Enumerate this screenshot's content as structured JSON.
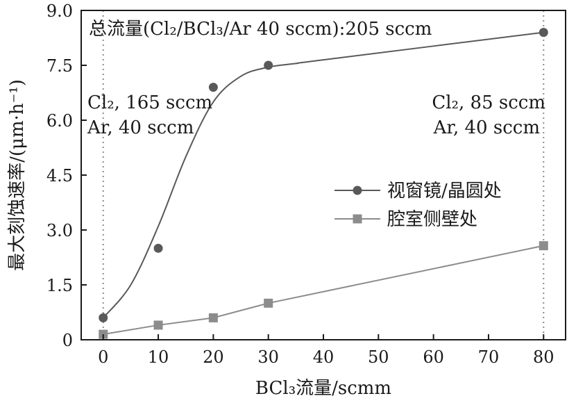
{
  "chart_data": {
    "type": "line",
    "title": "总流量(Cl₂/BCl₃/Ar 40 sccm):205 sccm",
    "xlabel": "BCl₃流量/scmm",
    "ylabel": "最大刻蚀速率/(μm·h⁻¹)",
    "xlim": [
      -4,
      84
    ],
    "ylim": [
      0,
      9.0
    ],
    "x_ticks": [
      0,
      10,
      20,
      30,
      40,
      50,
      60,
      70,
      80
    ],
    "y_ticks": [
      0,
      1.5,
      3.0,
      4.5,
      6.0,
      7.5,
      9.0
    ],
    "y_tick_labels": [
      "0",
      "1.5",
      "3.0",
      "4.5",
      "6.0",
      "7.5",
      "9.0"
    ],
    "grid": false,
    "legend_position": "center-right",
    "vlines": [
      0,
      80
    ],
    "annotations": [
      {
        "lines": [
          "Cl₂, 165 sccm",
          "Ar, 40 sccm"
        ],
        "position": "left"
      },
      {
        "lines": [
          "Cl₂, 85 sccm",
          "Ar, 40 sccm"
        ],
        "position": "right"
      }
    ],
    "series": [
      {
        "name": "视窗镜/晶圆处",
        "marker": "circle",
        "color": "#595959",
        "x": [
          0,
          10,
          20,
          30,
          80
        ],
        "y": [
          0.6,
          2.5,
          6.9,
          7.5,
          8.4
        ],
        "fit_curve": {
          "x": [
            0,
            5,
            10,
            15,
            20,
            25,
            30,
            35,
            40,
            80
          ],
          "y": [
            0.6,
            1.5,
            3.1,
            5.0,
            6.5,
            7.2,
            7.45,
            7.55,
            7.65,
            8.4
          ]
        }
      },
      {
        "name": "腔室侧壁处",
        "marker": "square",
        "color": "#8c8c8c",
        "x": [
          0,
          10,
          20,
          30,
          80
        ],
        "y": [
          0.15,
          0.4,
          0.6,
          1.0,
          2.57
        ]
      }
    ]
  }
}
